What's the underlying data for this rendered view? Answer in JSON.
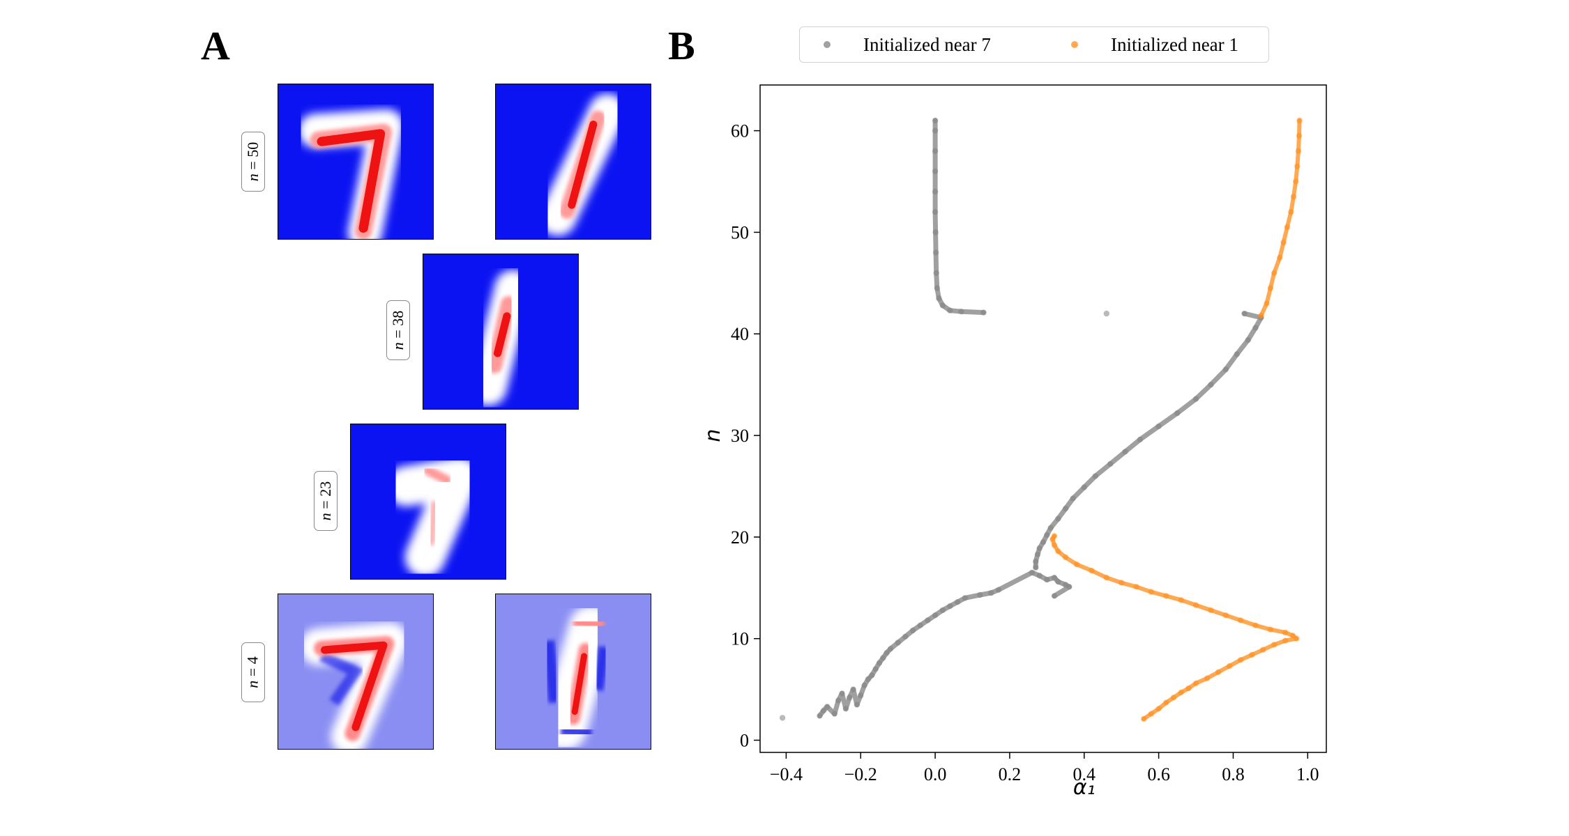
{
  "panel_a": {
    "letter": "A",
    "rows": [
      {
        "label": "n = 50",
        "n": "50"
      },
      {
        "label": "n = 38",
        "n": "38"
      },
      {
        "label": "n = 23",
        "n": "23"
      },
      {
        "label": "n = 4",
        "n": "4"
      }
    ],
    "colors": {
      "background_strong": "#0b13f2",
      "background_weak": "#8a8ef2",
      "positive": "#f01515",
      "neutral": "#ffffff"
    }
  },
  "panel_b": {
    "letter": "B",
    "legend": [
      {
        "label": "Initialized near 7",
        "color": "#808080"
      },
      {
        "label": "Initialized near 1",
        "color": "#ff8c1a"
      }
    ]
  },
  "chart_data": {
    "type": "scatter",
    "title": "",
    "xlabel": "α₁",
    "ylabel": "n",
    "xlim": [
      -0.47,
      1.05
    ],
    "ylim": [
      -1.2,
      64.5
    ],
    "xticks": [
      -0.4,
      -0.2,
      0.0,
      0.2,
      0.4,
      0.6,
      0.8,
      1.0
    ],
    "xtick_labels": [
      "−0.4",
      "−0.2",
      "0.0",
      "0.2",
      "0.4",
      "0.6",
      "0.8",
      "1.0"
    ],
    "yticks": [
      0,
      10,
      20,
      30,
      40,
      50,
      60
    ],
    "ytick_labels": [
      "0",
      "10",
      "20",
      "30",
      "40",
      "50",
      "60"
    ],
    "grid": false,
    "legend_position": "top-center (above plot)",
    "series": [
      {
        "name": "Initialized near 7",
        "color": "#808080",
        "points": [
          [
            -0.41,
            2.2
          ],
          [
            -0.31,
            2.4
          ],
          [
            -0.3,
            2.9
          ],
          [
            -0.29,
            3.3
          ],
          [
            -0.27,
            2.6
          ],
          [
            -0.26,
            3.9
          ],
          [
            -0.25,
            4.6
          ],
          [
            -0.24,
            3.1
          ],
          [
            -0.23,
            4.2
          ],
          [
            -0.22,
            5.0
          ],
          [
            -0.21,
            3.5
          ],
          [
            -0.2,
            4.4
          ],
          [
            -0.19,
            5.4
          ],
          [
            -0.18,
            6.0
          ],
          [
            -0.17,
            6.4
          ],
          [
            -0.16,
            7.0
          ],
          [
            -0.15,
            7.6
          ],
          [
            -0.14,
            8.1
          ],
          [
            -0.13,
            8.6
          ],
          [
            -0.12,
            9.0
          ],
          [
            -0.1,
            9.6
          ],
          [
            -0.08,
            10.2
          ],
          [
            -0.06,
            10.8
          ],
          [
            -0.04,
            11.3
          ],
          [
            -0.02,
            11.8
          ],
          [
            0.0,
            12.3
          ],
          [
            0.02,
            12.8
          ],
          [
            0.04,
            13.2
          ],
          [
            0.06,
            13.6
          ],
          [
            0.08,
            14.0
          ],
          [
            0.12,
            14.3
          ],
          [
            0.15,
            14.5
          ],
          [
            0.17,
            14.8
          ],
          [
            0.26,
            16.5
          ],
          [
            0.28,
            16.2
          ],
          [
            0.3,
            15.8
          ],
          [
            0.32,
            16.0
          ],
          [
            0.33,
            15.6
          ],
          [
            0.35,
            15.3
          ],
          [
            0.36,
            15.1
          ],
          [
            0.32,
            14.2
          ],
          [
            0.27,
            17.0
          ],
          [
            0.27,
            17.6
          ],
          [
            0.275,
            18.3
          ],
          [
            0.28,
            18.9
          ],
          [
            0.29,
            19.5
          ],
          [
            0.3,
            20.2
          ],
          [
            0.31,
            20.9
          ],
          [
            0.33,
            21.8
          ],
          [
            0.35,
            22.8
          ],
          [
            0.37,
            23.8
          ],
          [
            0.4,
            24.9
          ],
          [
            0.43,
            26.0
          ],
          [
            0.47,
            27.2
          ],
          [
            0.51,
            28.4
          ],
          [
            0.55,
            29.6
          ],
          [
            0.6,
            30.9
          ],
          [
            0.65,
            32.2
          ],
          [
            0.7,
            33.6
          ],
          [
            0.74,
            35.0
          ],
          [
            0.78,
            36.5
          ],
          [
            0.81,
            38.0
          ],
          [
            0.84,
            39.4
          ],
          [
            0.86,
            40.6
          ],
          [
            0.875,
            41.6
          ],
          [
            0.83,
            42.0
          ],
          [
            0.46,
            42.0
          ],
          [
            0.13,
            42.1
          ],
          [
            0.07,
            42.2
          ],
          [
            0.04,
            42.3
          ],
          [
            0.02,
            42.8
          ],
          [
            0.01,
            43.5
          ],
          [
            0.005,
            44.5
          ],
          [
            0.003,
            46.0
          ],
          [
            0.002,
            48.0
          ],
          [
            0.001,
            50.0
          ],
          [
            0.0,
            52.0
          ],
          [
            0.0,
            54.0
          ],
          [
            0.0,
            56.0
          ],
          [
            0.0,
            58.0
          ],
          [
            0.0,
            60.0
          ],
          [
            0.0,
            61.0
          ]
        ]
      },
      {
        "name": "Initialized near 1",
        "color": "#ff8c1a",
        "points": [
          [
            0.56,
            2.1
          ],
          [
            0.58,
            2.6
          ],
          [
            0.6,
            3.1
          ],
          [
            0.62,
            3.7
          ],
          [
            0.64,
            4.2
          ],
          [
            0.66,
            4.7
          ],
          [
            0.68,
            5.1
          ],
          [
            0.7,
            5.6
          ],
          [
            0.73,
            6.1
          ],
          [
            0.76,
            6.7
          ],
          [
            0.79,
            7.3
          ],
          [
            0.82,
            7.9
          ],
          [
            0.85,
            8.4
          ],
          [
            0.88,
            8.9
          ],
          [
            0.91,
            9.4
          ],
          [
            0.94,
            9.8
          ],
          [
            0.97,
            10.0
          ],
          [
            0.96,
            10.3
          ],
          [
            0.94,
            10.6
          ],
          [
            0.9,
            10.9
          ],
          [
            0.86,
            11.3
          ],
          [
            0.82,
            11.8
          ],
          [
            0.78,
            12.3
          ],
          [
            0.74,
            12.8
          ],
          [
            0.7,
            13.3
          ],
          [
            0.66,
            13.8
          ],
          [
            0.62,
            14.2
          ],
          [
            0.58,
            14.6
          ],
          [
            0.54,
            15.1
          ],
          [
            0.5,
            15.5
          ],
          [
            0.46,
            16.0
          ],
          [
            0.42,
            16.7
          ],
          [
            0.38,
            17.3
          ],
          [
            0.35,
            18.0
          ],
          [
            0.33,
            18.6
          ],
          [
            0.32,
            19.2
          ],
          [
            0.315,
            19.8
          ],
          [
            0.32,
            20.1
          ],
          [
            0.875,
            41.8
          ],
          [
            0.89,
            43.0
          ],
          [
            0.9,
            44.5
          ],
          [
            0.91,
            46.0
          ],
          [
            0.925,
            47.5
          ],
          [
            0.935,
            49.0
          ],
          [
            0.945,
            50.5
          ],
          [
            0.955,
            52.0
          ],
          [
            0.962,
            53.5
          ],
          [
            0.968,
            55.0
          ],
          [
            0.972,
            56.5
          ],
          [
            0.975,
            58.0
          ],
          [
            0.977,
            59.5
          ],
          [
            0.978,
            61.0
          ]
        ]
      }
    ]
  }
}
